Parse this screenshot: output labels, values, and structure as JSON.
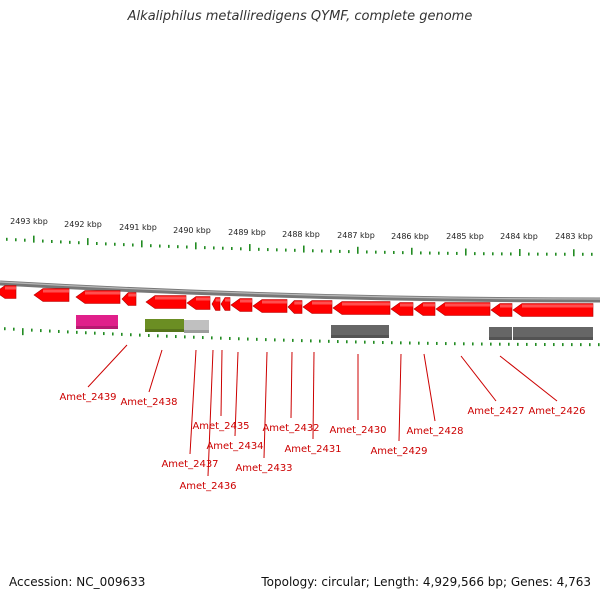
{
  "title": "Alkaliphilus metalliredigens QYMF, complete genome",
  "footer": {
    "accession": "Accession: NC_009633",
    "summary": "Topology: circular; Length: 4,929,566 bp; Genes: 4,763"
  },
  "scale_labels": [
    "2493 kbp",
    "2492 kbp",
    "2491 kbp",
    "2490 kbp",
    "2489 kbp",
    "2488 kbp",
    "2487 kbp",
    "2486 kbp",
    "2485 kbp",
    "2484 kbp",
    "2483 kbp"
  ],
  "colors": {
    "gene": "#ff0000",
    "backbone": "#777777",
    "tick": "#228B22",
    "label": "#cc0000",
    "magenta_feature": "#e0208a",
    "olive_feature": "#6b8e23",
    "gray_feature": "#666666",
    "light_gray_feature": "#c0c0c0"
  },
  "gene_labels": [
    "Amet_2439",
    "Amet_2438",
    "Amet_2437",
    "Amet_2436",
    "Amet_2435",
    "Amet_2434",
    "Amet_2433",
    "Amet_2432",
    "Amet_2431",
    "Amet_2430",
    "Amet_2429",
    "Amet_2428",
    "Amet_2427",
    "Amet_2426"
  ]
}
